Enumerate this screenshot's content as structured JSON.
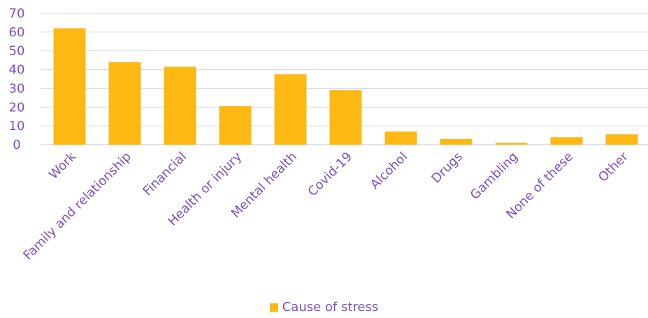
{
  "chart_data": {
    "type": "bar",
    "title": "",
    "xlabel": "",
    "ylabel": "",
    "ylim": [
      0,
      70
    ],
    "yticks": [
      0,
      10,
      20,
      30,
      40,
      50,
      60,
      70
    ],
    "grid": true,
    "legend_position": "bottom",
    "categories": [
      "Work",
      "Family and relationship",
      "Financial",
      "Health or injury",
      "Mental health",
      "Covid-19",
      "Alcohol",
      "Drugs",
      "Gambling",
      "None of these",
      "Other"
    ],
    "series": [
      {
        "name": "Cause of stress",
        "color": "#FDB813",
        "values": [
          62,
          44,
          41.5,
          20.5,
          37.5,
          29,
          7,
          3,
          1,
          4,
          5.5
        ]
      }
    ]
  },
  "colors": {
    "axis_text": "#7a4fc9",
    "grid": "#d6d6e6",
    "bar": "#FDB813"
  }
}
